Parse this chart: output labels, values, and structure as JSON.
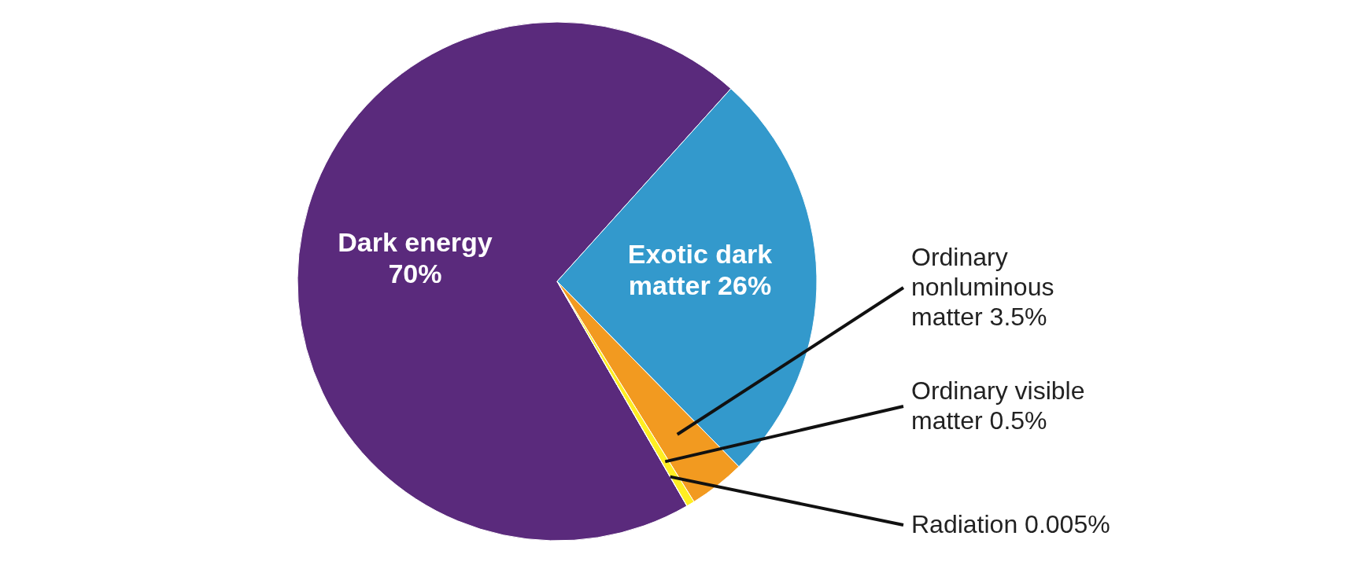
{
  "chart_data": {
    "type": "pie",
    "categories": [
      "Dark energy",
      "Exotic dark matter",
      "Ordinary nonluminous matter",
      "Ordinary visible matter",
      "Radiation"
    ],
    "values": [
      70,
      26,
      3.5,
      0.5,
      0.005
    ],
    "value_labels": [
      "70%",
      "26%",
      "3.5%",
      "0.5%",
      "0.005%"
    ],
    "colors": [
      "#5a2a7c",
      "#3399cc",
      "#f29a20",
      "#ffee22",
      "#f4f4a0"
    ]
  }
}
